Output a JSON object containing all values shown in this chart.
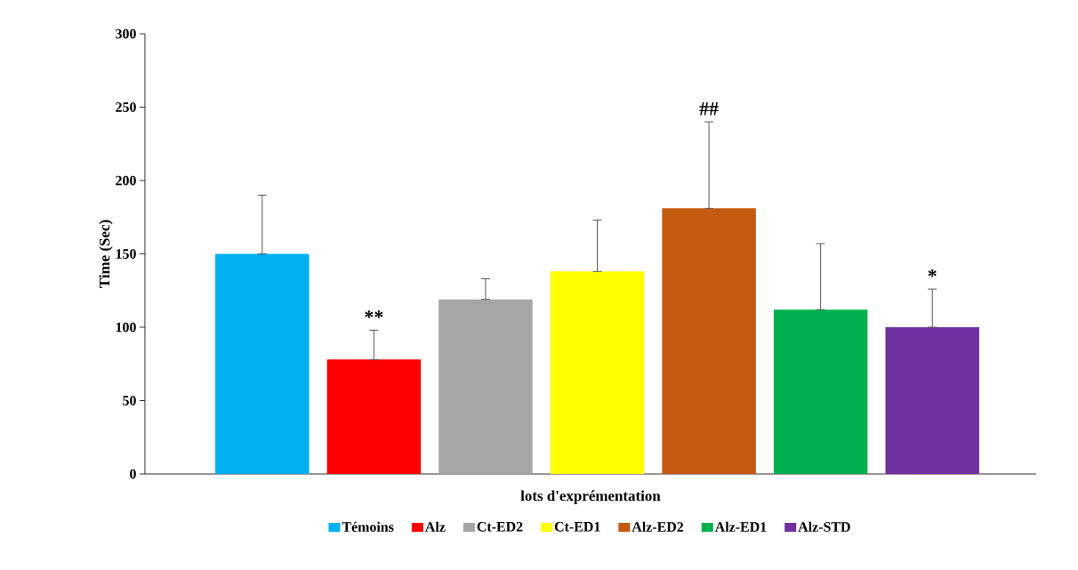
{
  "chart_data": {
    "type": "bar",
    "xlabel": "lots d'exprémentation",
    "ylabel": "Time (Sec)",
    "categories": [
      null,
      null,
      null,
      null,
      null,
      null,
      null
    ],
    "series": [
      {
        "name": "Témoins",
        "color": "#00b0f0",
        "values": [
          150,
          null,
          null,
          null,
          null,
          null,
          null
        ],
        "errors": [
          [
            150,
            190
          ],
          null,
          null,
          null,
          null,
          null,
          null
        ]
      },
      {
        "name": "Alz",
        "color": "#ff0000",
        "values": [
          null,
          78,
          null,
          null,
          null,
          null,
          null
        ],
        "errors": [
          null,
          [
            78,
            98
          ],
          null,
          null,
          null,
          null,
          null
        ]
      },
      {
        "name": "Ct-ED2",
        "color": "#a6a6a6",
        "values": [
          null,
          null,
          119,
          null,
          null,
          null,
          null
        ],
        "errors": [
          null,
          null,
          [
            119,
            133
          ],
          null,
          null,
          null,
          null
        ]
      },
      {
        "name": "Ct-ED1",
        "color": "#ffff00",
        "values": [
          null,
          null,
          null,
          138,
          null,
          null,
          null
        ],
        "errors": [
          null,
          null,
          null,
          [
            138,
            173
          ],
          null,
          null,
          null
        ]
      },
      {
        "name": "Alz-ED2",
        "color": "#c55a11",
        "values": [
          null,
          null,
          null,
          null,
          181,
          null,
          null
        ],
        "errors": [
          null,
          null,
          null,
          null,
          [
            181,
            240
          ],
          null,
          null
        ]
      },
      {
        "name": "Alz-ED1",
        "color": "#00b050",
        "values": [
          null,
          null,
          null,
          null,
          null,
          112,
          null
        ],
        "errors": [
          null,
          null,
          null,
          null,
          null,
          [
            112,
            157
          ],
          null
        ]
      },
      {
        "name": "Alz-STD",
        "color": "#7030a0",
        "values": [
          null,
          null,
          null,
          null,
          null,
          null,
          100
        ],
        "errors": [
          null,
          null,
          null,
          null,
          null,
          null,
          [
            100,
            126
          ]
        ]
      }
    ],
    "annotations": [
      "**",
      "##",
      "*"
    ],
    "ylim": [
      0,
      300
    ],
    "yticks": [
      0,
      50,
      100,
      150,
      200,
      250,
      300
    ],
    "legend": "bottom",
    "tick_labels": "y",
    "grid": false
  }
}
